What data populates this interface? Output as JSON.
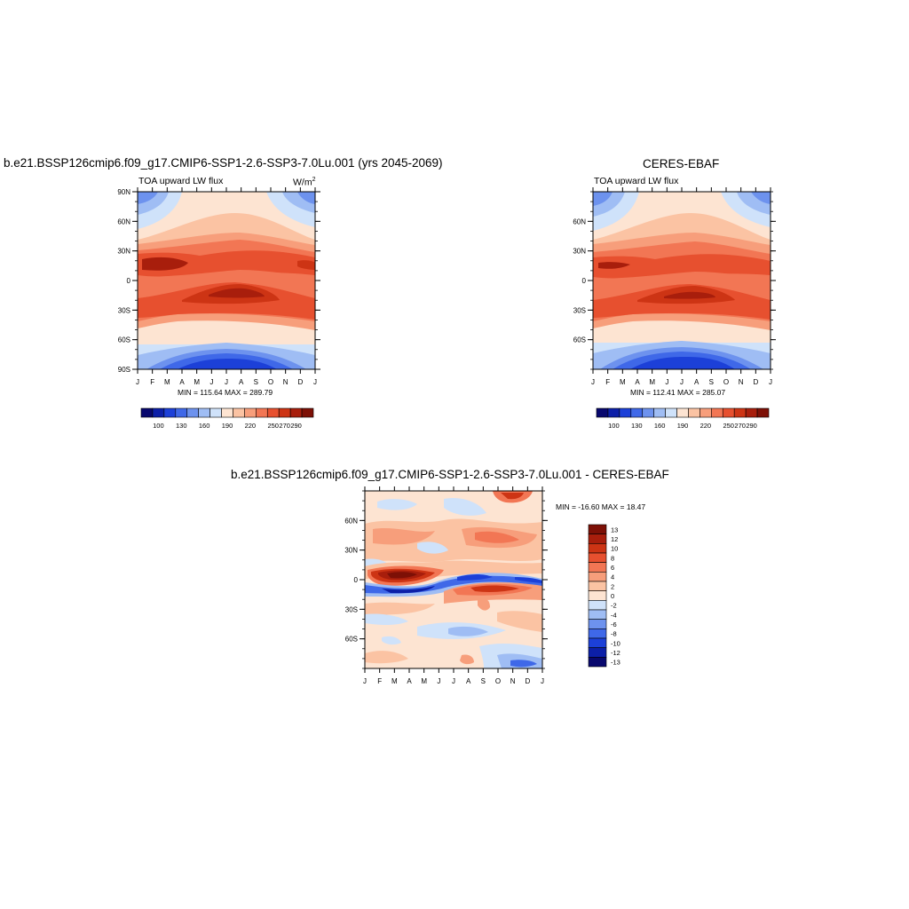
{
  "panels": {
    "model": {
      "title": "b.e21.BSSP126cmip6.f09_g17.CMIP6-SSP1-2.6-SSP3-7.0Lu.001 (yrs 2045-2069)",
      "left_string": "TOA upward LW flux",
      "units_base": "W/m",
      "units_exp": "2",
      "stats": "MIN = 115.64 MAX = 289.79"
    },
    "obs": {
      "title": "CERES-EBAF",
      "left_string": "TOA upward LW flux",
      "stats": "MIN = 112.41 MAX = 285.07"
    },
    "diff": {
      "title": "b.e21.BSSP126cmip6.f09_g17.CMIP6-SSP1-2.6-SSP3-7.0Lu.001 - CERES-EBAF",
      "stats": "MIN = -16.60 MAX =  18.47"
    }
  },
  "chart_data": [
    {
      "type": "heatmap",
      "name": "model",
      "title": "b.e21.BSSP126cmip6.f09_g17.CMIP6-SSP1-2.6-SSP3-7.0Lu.001 (yrs 2045-2069)",
      "x_categories": [
        "J",
        "F",
        "M",
        "A",
        "M",
        "J",
        "J",
        "A",
        "S",
        "O",
        "N",
        "D",
        "J"
      ],
      "y_ticks": [
        "90N",
        "60N",
        "30N",
        "0",
        "30S",
        "60S",
        "90S"
      ],
      "ylim": [
        -90,
        90
      ],
      "min": 115.64,
      "max": 289.79,
      "colorbar_labels": [
        "100",
        "130",
        "160",
        "190",
        "220",
        "250",
        "270",
        "290"
      ]
    },
    {
      "type": "heatmap",
      "name": "obs",
      "title": "CERES-EBAF",
      "x_categories": [
        "J",
        "F",
        "M",
        "A",
        "M",
        "J",
        "J",
        "A",
        "S",
        "O",
        "N",
        "D",
        "J"
      ],
      "y_ticks": [
        "60N",
        "30N",
        "0",
        "30S",
        "60S"
      ],
      "ylim": [
        -90,
        90
      ],
      "min": 112.41,
      "max": 285.07,
      "colorbar_labels": [
        "100",
        "130",
        "160",
        "190",
        "220",
        "250",
        "270",
        "290"
      ]
    },
    {
      "type": "heatmap",
      "name": "difference",
      "title": "b.e21.BSSP126cmip6.f09_g17.CMIP6-SSP1-2.6-SSP3-7.0Lu.001 - CERES-EBAF",
      "x_categories": [
        "J",
        "F",
        "M",
        "A",
        "M",
        "J",
        "J",
        "A",
        "S",
        "O",
        "N",
        "D",
        "J"
      ],
      "y_ticks": [
        "60N",
        "30N",
        "0",
        "30S",
        "60S"
      ],
      "ylim": [
        -90,
        90
      ],
      "min": -16.6,
      "max": 18.47,
      "colorbar_labels": [
        "13",
        "12",
        "10",
        "8",
        "6",
        "4",
        "2",
        "0",
        "-2",
        "-4",
        "-6",
        "-8",
        "-10",
        "-12",
        "-13"
      ]
    }
  ],
  "palettes": {
    "full": [
      "#08086e",
      "#0c1fa8",
      "#1c40d8",
      "#3f68e8",
      "#6d92ee",
      "#9fbdf4",
      "#cfe2fa",
      "#fde4d2",
      "#fbc3a3",
      "#f79e7b",
      "#f27654",
      "#e7502f",
      "#cd3414",
      "#a81e0c",
      "#7d1006"
    ],
    "diff": [
      "#7d1006",
      "#a81e0c",
      "#cd3414",
      "#e7502f",
      "#f27654",
      "#f79e7b",
      "#fbc3a3",
      "#fde4d2",
      "#cfe2fa",
      "#9fbdf4",
      "#6d92ee",
      "#3f68e8",
      "#1c40d8",
      "#0c1fa8",
      "#08086e"
    ]
  }
}
